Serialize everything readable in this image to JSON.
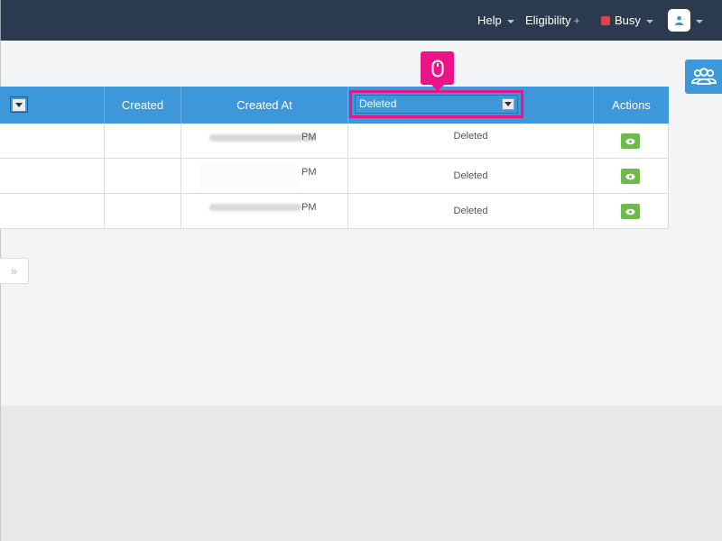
{
  "topbar": {
    "help_label": "Help",
    "eligibility_label": "Eligibility",
    "eligibility_plus": "+",
    "status_label": "Busy",
    "status_color": "#e0424b"
  },
  "table": {
    "columns": {
      "created": "Created",
      "created_at": "Created At",
      "deleted_filter_value": "Deleted",
      "actions": "Actions"
    },
    "rows": [
      {
        "created_at_suffix": "PM",
        "deleted": "Deleted"
      },
      {
        "created_at_suffix": "PM",
        "deleted": "Deleted"
      },
      {
        "created_at_suffix": "PM",
        "deleted": "Deleted"
      }
    ]
  },
  "pager": {
    "next_label": "»"
  },
  "colors": {
    "header_blue": "#3d97d8",
    "topbar": "#2b3a4e",
    "highlight": "#ec1289",
    "view_button": "#6fba4d"
  },
  "icons": {
    "eye": "eye-icon",
    "user": "user-icon",
    "mouse": "mouse-icon",
    "users": "users-group-icon"
  }
}
